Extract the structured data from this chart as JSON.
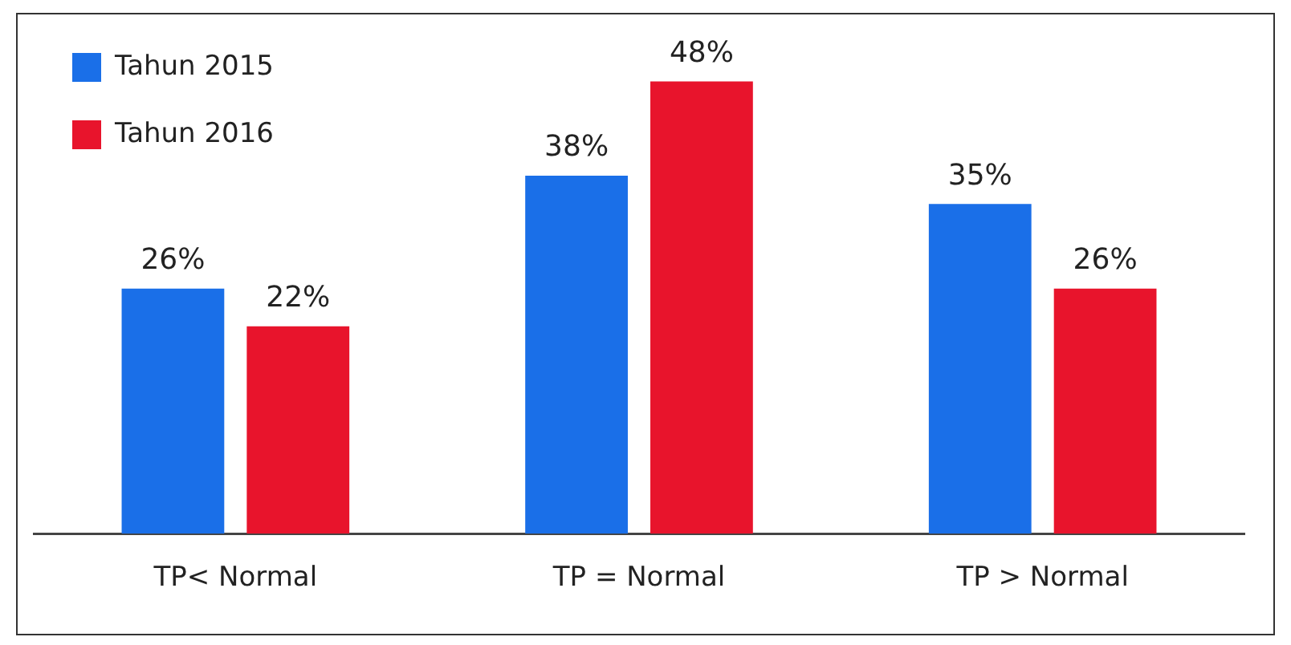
{
  "chart_data": {
    "type": "bar",
    "categories": [
      "TP< Normal",
      "TP = Normal",
      "TP > Normal"
    ],
    "series": [
      {
        "name": "Tahun 2015",
        "color": "#1a6fe8",
        "values": [
          26,
          38,
          35
        ],
        "value_labels": [
          "26%",
          "38%",
          "35%"
        ]
      },
      {
        "name": "Tahun 2016",
        "color": "#e8142c",
        "values": [
          22,
          48,
          26
        ],
        "value_labels": [
          "22%",
          "48%",
          "26%"
        ]
      }
    ],
    "tick_labels": "x",
    "grid": false,
    "legend": "top left"
  }
}
